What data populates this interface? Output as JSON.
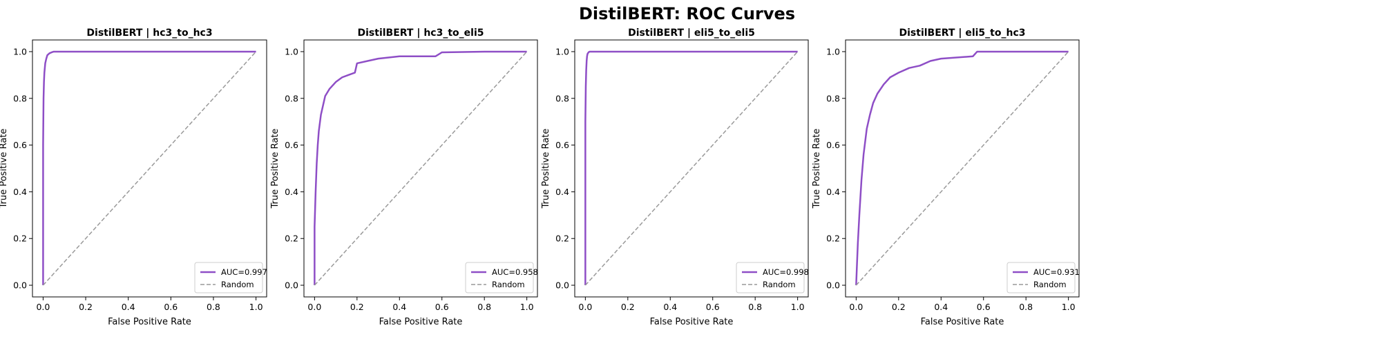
{
  "figure": {
    "title": "DistilBERT: ROC Curves"
  },
  "colors": {
    "roc_line": "#8e4ec6",
    "random_line": "#999999",
    "axis": "#000000",
    "background": "#ffffff"
  },
  "chart_data": [
    {
      "type": "line",
      "title": "DistilBERT | hc3_to_hc3",
      "xlabel": "False Positive Rate",
      "ylabel": "True Positive Rate",
      "xlim": [
        -0.05,
        1.05
      ],
      "ylim": [
        -0.05,
        1.05
      ],
      "xticks": [
        "0.0",
        "0.2",
        "0.4",
        "0.6",
        "0.8",
        "1.0"
      ],
      "yticks": [
        "0.0",
        "0.2",
        "0.4",
        "0.6",
        "0.8",
        "1.0"
      ],
      "grid": false,
      "legend_position": "bottom-right",
      "series": [
        {
          "name": "AUC=0.997",
          "style": "solid",
          "x": [
            0.0,
            0.0,
            0.002,
            0.004,
            0.006,
            0.01,
            0.015,
            0.02,
            0.03,
            0.04,
            0.05,
            1.0
          ],
          "y": [
            0.0,
            0.6,
            0.8,
            0.87,
            0.91,
            0.95,
            0.97,
            0.985,
            0.993,
            0.997,
            1.0,
            1.0
          ]
        },
        {
          "name": "Random",
          "style": "dashed",
          "x": [
            0,
            1
          ],
          "y": [
            0,
            1
          ]
        }
      ]
    },
    {
      "type": "line",
      "title": "DistilBERT | hc3_to_eli5",
      "xlabel": "False Positive Rate",
      "ylabel": "True Positive Rate",
      "xlim": [
        -0.05,
        1.05
      ],
      "ylim": [
        -0.05,
        1.05
      ],
      "xticks": [
        "0.0",
        "0.2",
        "0.4",
        "0.6",
        "0.8",
        "1.0"
      ],
      "yticks": [
        "0.0",
        "0.2",
        "0.4",
        "0.6",
        "0.8",
        "1.0"
      ],
      "grid": false,
      "legend_position": "bottom-right",
      "series": [
        {
          "name": "AUC=0.958",
          "style": "solid",
          "x": [
            0.0,
            0.0,
            0.005,
            0.01,
            0.015,
            0.02,
            0.03,
            0.04,
            0.05,
            0.07,
            0.1,
            0.13,
            0.16,
            0.19,
            0.2,
            0.25,
            0.3,
            0.4,
            0.57,
            0.6,
            0.8,
            1.0
          ],
          "y": [
            0.0,
            0.25,
            0.4,
            0.52,
            0.6,
            0.66,
            0.73,
            0.77,
            0.81,
            0.84,
            0.87,
            0.89,
            0.9,
            0.91,
            0.95,
            0.96,
            0.97,
            0.98,
            0.98,
            0.997,
            1.0,
            1.0
          ]
        },
        {
          "name": "Random",
          "style": "dashed",
          "x": [
            0,
            1
          ],
          "y": [
            0,
            1
          ]
        }
      ]
    },
    {
      "type": "line",
      "title": "DistilBERT | eli5_to_eli5",
      "xlabel": "False Positive Rate",
      "ylabel": "True Positive Rate",
      "xlim": [
        -0.05,
        1.05
      ],
      "ylim": [
        -0.05,
        1.05
      ],
      "xticks": [
        "0.0",
        "0.2",
        "0.4",
        "0.6",
        "0.8",
        "1.0"
      ],
      "yticks": [
        "0.0",
        "0.2",
        "0.4",
        "0.6",
        "0.8",
        "1.0"
      ],
      "grid": false,
      "legend_position": "bottom-right",
      "series": [
        {
          "name": "AUC=0.998",
          "style": "solid",
          "x": [
            0.0,
            0.0,
            0.002,
            0.004,
            0.006,
            0.008,
            0.01,
            0.015,
            0.02,
            1.0
          ],
          "y": [
            0.0,
            0.7,
            0.85,
            0.92,
            0.96,
            0.98,
            0.99,
            0.997,
            1.0,
            1.0
          ]
        },
        {
          "name": "Random",
          "style": "dashed",
          "x": [
            0,
            1
          ],
          "y": [
            0,
            1
          ]
        }
      ]
    },
    {
      "type": "line",
      "title": "DistilBERT | eli5_to_hc3",
      "xlabel": "False Positive Rate",
      "ylabel": "True Positive Rate",
      "xlim": [
        -0.05,
        1.05
      ],
      "ylim": [
        -0.05,
        1.05
      ],
      "xticks": [
        "0.0",
        "0.2",
        "0.4",
        "0.6",
        "0.8",
        "1.0"
      ],
      "yticks": [
        "0.0",
        "0.2",
        "0.4",
        "0.6",
        "0.8",
        "1.0"
      ],
      "grid": false,
      "legend_position": "bottom-right",
      "series": [
        {
          "name": "AUC=0.931",
          "style": "solid",
          "x": [
            0.0,
            0.003,
            0.008,
            0.015,
            0.025,
            0.035,
            0.05,
            0.065,
            0.08,
            0.1,
            0.13,
            0.16,
            0.2,
            0.25,
            0.3,
            0.35,
            0.4,
            0.55,
            0.57,
            0.6,
            0.8,
            1.0
          ],
          "y": [
            0.0,
            0.07,
            0.18,
            0.3,
            0.45,
            0.56,
            0.67,
            0.73,
            0.78,
            0.82,
            0.86,
            0.89,
            0.91,
            0.93,
            0.94,
            0.96,
            0.97,
            0.98,
            1.0,
            1.0,
            1.0,
            1.0
          ]
        },
        {
          "name": "Random",
          "style": "dashed",
          "x": [
            0,
            1
          ],
          "y": [
            0,
            1
          ]
        }
      ]
    }
  ]
}
